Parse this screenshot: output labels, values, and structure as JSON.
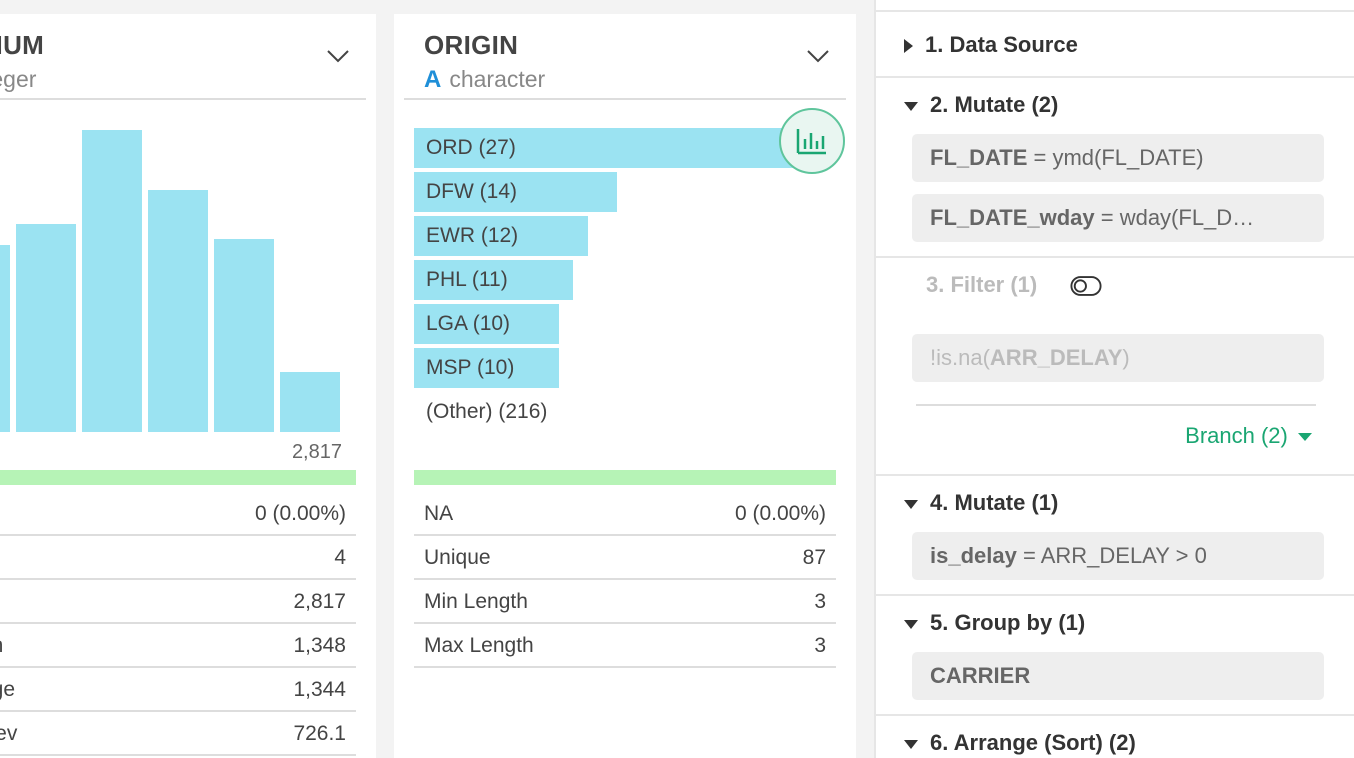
{
  "left_column": {
    "name": "NUM",
    "type": "teger",
    "max_tick": "2,817",
    "histogram_relative_heights": [
      0.62,
      0.69,
      1.0,
      0.8,
      0.64,
      0.2
    ],
    "stats": [
      {
        "key": "",
        "value": "0 (0.00%)"
      },
      {
        "key": "",
        "value": "4"
      },
      {
        "key": "",
        "value": "2,817"
      },
      {
        "key": "an",
        "value": "1,348"
      },
      {
        "key": "age",
        "value": "1,344"
      },
      {
        "key": "Dev",
        "value": "726.1"
      }
    ]
  },
  "origin_column": {
    "name": "ORIGIN",
    "type_icon": "A",
    "type": "character",
    "bars": [
      {
        "label": "ORD (27)",
        "count": 27
      },
      {
        "label": "DFW (14)",
        "count": 14
      },
      {
        "label": "EWR (12)",
        "count": 12
      },
      {
        "label": "PHL (11)",
        "count": 11
      },
      {
        "label": "LGA (10)",
        "count": 10
      },
      {
        "label": "MSP (10)",
        "count": 10
      }
    ],
    "other_label": "(Other) (216)",
    "stats": [
      {
        "key": "NA",
        "value": "0 (0.00%)"
      },
      {
        "key": "Unique",
        "value": "87"
      },
      {
        "key": "Min Length",
        "value": "3"
      },
      {
        "key": "Max Length",
        "value": "3"
      }
    ]
  },
  "steps": {
    "s1": {
      "title": "1. Data Source",
      "expanded": false
    },
    "s2": {
      "title": "2. Mutate (2)",
      "expanded": true,
      "items": [
        {
          "name": "FL_DATE",
          "expr": " = ymd(FL_DATE)"
        },
        {
          "name": "FL_DATE_wday",
          "expr": " = wday(FL_D…"
        }
      ]
    },
    "s3": {
      "title": "3. Filter (1)",
      "enabled": false,
      "item_prefix": "!is.na(",
      "item_bold": "ARR_DELAY",
      "item_suffix": ")",
      "branch_label": "Branch (2)"
    },
    "s4": {
      "title": "4. Mutate (1)",
      "expanded": true,
      "items": [
        {
          "name": "is_delay",
          "expr": " = ARR_DELAY > 0"
        }
      ]
    },
    "s5": {
      "title": "5. Group by (1)",
      "expanded": true,
      "items": [
        {
          "name": "CARRIER",
          "expr": ""
        }
      ]
    },
    "s6": {
      "title": "6. Arrange (Sort) (2)",
      "expanded": true
    }
  },
  "colors": {
    "bar": "#9be3f2",
    "accent_green": "#1aa672",
    "type_icon_blue": "#1f8fd8"
  }
}
